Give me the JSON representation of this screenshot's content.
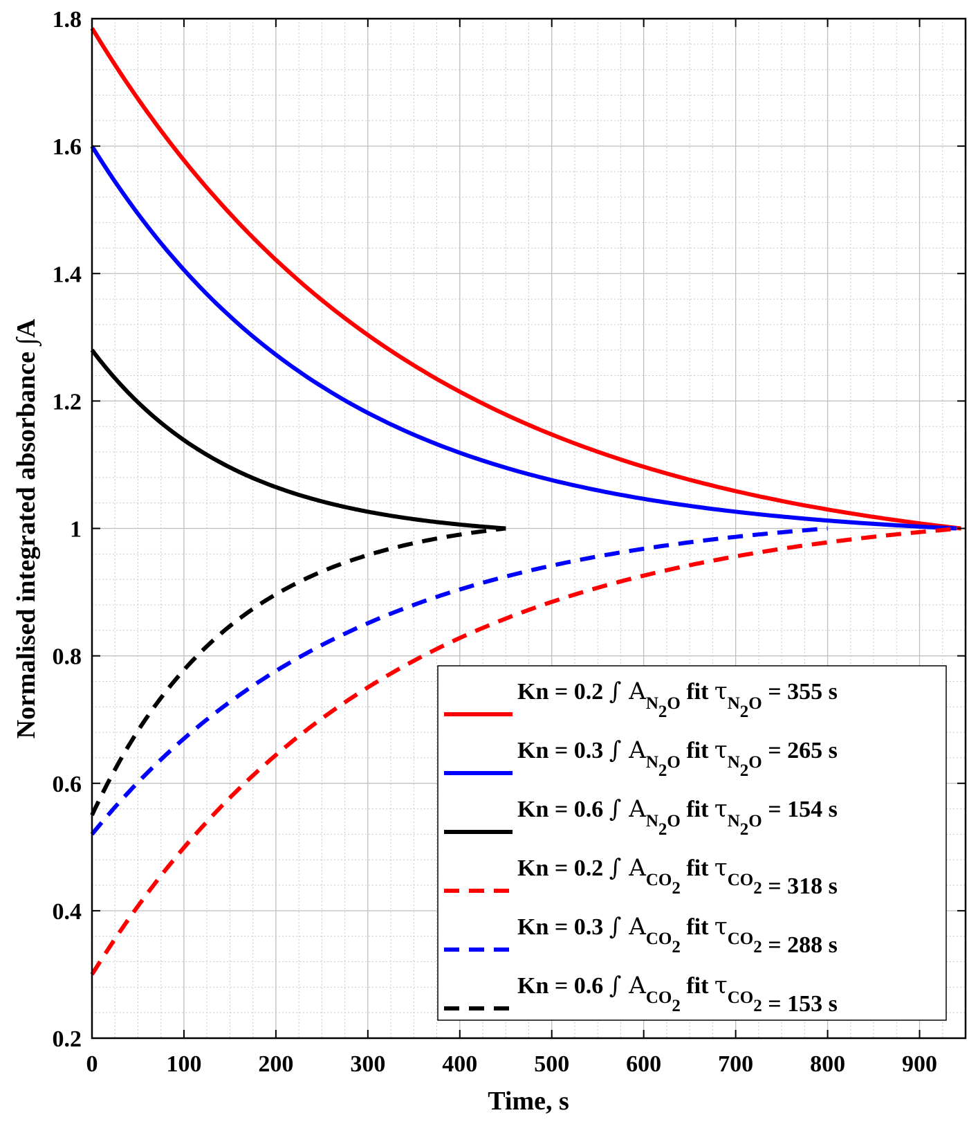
{
  "chart_data": {
    "type": "line",
    "title": "",
    "xlabel": "Time, s",
    "ylabel": "Normalised integrated absorbance ∫A",
    "xlim": [
      0,
      950
    ],
    "ylim": [
      0.2,
      1.8
    ],
    "xticks": [
      0,
      100,
      200,
      300,
      400,
      500,
      600,
      700,
      800,
      900
    ],
    "yticks": [
      0.2,
      0.4,
      0.6,
      0.8,
      1,
      1.2,
      1.4,
      1.6,
      1.8
    ],
    "xtick_labels": [
      "0",
      "100",
      "200",
      "300",
      "400",
      "500",
      "600",
      "700",
      "800",
      "900"
    ],
    "ytick_labels": [
      "0.2",
      "0.4",
      "0.6",
      "0.8",
      "1",
      "1.2",
      "1.4",
      "1.6",
      "1.8"
    ],
    "grid": true,
    "minor_grid": true,
    "legend_position": "bottom-right",
    "series": [
      {
        "name": "Kn = 0.2 ∫ A_N2O fit τ_N2O = 355 s",
        "kn": "0.2",
        "species": "N2O",
        "tau": "355",
        "color": "#ff0000",
        "style": "solid",
        "t_end": 945,
        "start_value": 1.785,
        "end_value": 1.0
      },
      {
        "name": "Kn = 0.3 ∫ A_N2O fit τ_N2O = 265 s",
        "kn": "0.3",
        "species": "N2O",
        "tau": "265",
        "color": "#0000ff",
        "style": "solid",
        "t_end": 940,
        "start_value": 1.6,
        "end_value": 1.0
      },
      {
        "name": "Kn = 0.6 ∫ A_N2O fit τ_N2O = 154 s",
        "kn": "0.6",
        "species": "N2O",
        "tau": "154",
        "color": "#000000",
        "style": "solid",
        "t_end": 450,
        "start_value": 1.28,
        "end_value": 1.0
      },
      {
        "name": "Kn = 0.2 ∫ A_CO2 fit τ_CO2 = 318 s",
        "kn": "0.2",
        "species": "CO2",
        "tau": "318",
        "color": "#ff0000",
        "style": "dashed",
        "t_end": 945,
        "start_value": 0.3,
        "end_value": 1.0
      },
      {
        "name": "Kn = 0.3 ∫ A_CO2 fit τ_CO2 = 288 s",
        "kn": "0.3",
        "species": "CO2",
        "tau": "288",
        "color": "#0000ff",
        "style": "dashed",
        "t_end": 800,
        "start_value": 0.52,
        "end_value": 1.0
      },
      {
        "name": "Kn = 0.6 ∫ A_CO2 fit τ_CO2 = 153 s",
        "kn": "0.6",
        "species": "CO2",
        "tau": "153",
        "color": "#000000",
        "style": "dashed",
        "t_end": 450,
        "start_value": 0.55,
        "end_value": 1.0
      }
    ],
    "legend_labels": {
      "kn_prefix": "Kn = ",
      "integral_A": "∫ A",
      "fit": "fit",
      "tau": "τ",
      "unit": "s",
      "sub_N": "N",
      "sub_O": "O",
      "sub_CO": "CO",
      "sub_2": "2"
    }
  }
}
